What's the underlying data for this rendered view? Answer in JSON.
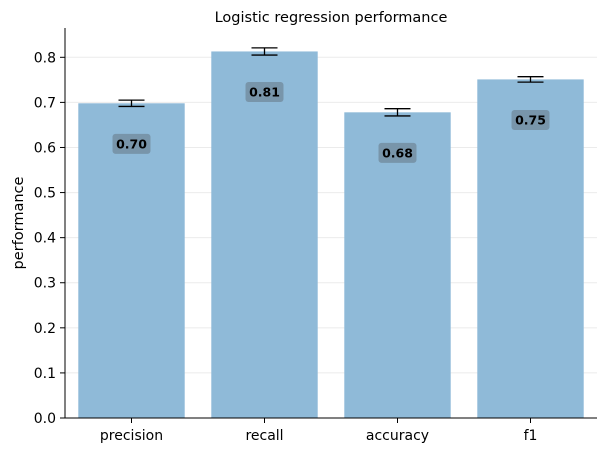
{
  "chart_data": {
    "type": "bar",
    "title": "Logistic regression performance",
    "xlabel": "",
    "ylabel": "performance",
    "categories": [
      "precision",
      "recall",
      "accuracy",
      "f1"
    ],
    "values": [
      0.698,
      0.813,
      0.678,
      0.751
    ],
    "errors": [
      0.007,
      0.008,
      0.008,
      0.006
    ],
    "data_labels": [
      "0.70",
      "0.81",
      "0.68",
      "0.75"
    ],
    "ylim": [
      0,
      0.865
    ],
    "yticks": [
      0.0,
      0.1,
      0.2,
      0.3,
      0.4,
      0.5,
      0.6,
      0.7,
      0.8
    ],
    "ytick_labels": [
      "0.0",
      "0.1",
      "0.2",
      "0.3",
      "0.4",
      "0.5",
      "0.6",
      "0.7",
      "0.8"
    ],
    "grid": "horizontal",
    "bar_color": "#8fbad8",
    "label_box_color": "#7895aa"
  }
}
